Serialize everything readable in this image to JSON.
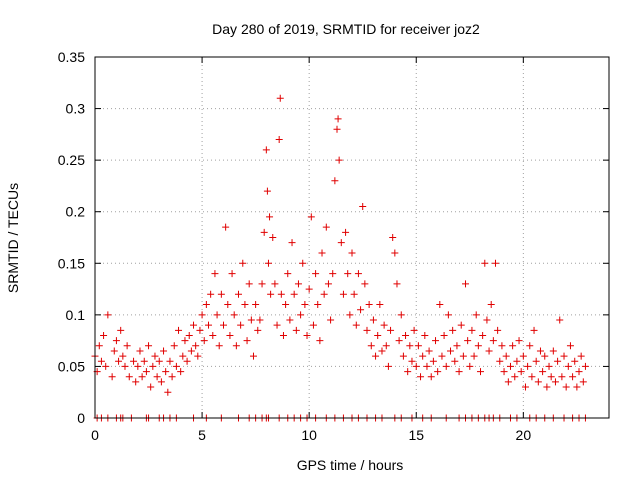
{
  "chart_data": {
    "type": "scatter",
    "title": "Day 280 of 2019, SRMTID for receiver joz2",
    "xlabel": "GPS time / hours",
    "ylabel": "SRMTID / TECUs",
    "xlim": [
      0,
      24
    ],
    "ylim": [
      0,
      0.35
    ],
    "xticks": [
      0,
      5,
      10,
      15,
      20
    ],
    "yticks": [
      0,
      0.05,
      0.1,
      0.15,
      0.2,
      0.25,
      0.3,
      0.35
    ],
    "xtick_labels": [
      "0",
      "5",
      "10",
      "15",
      "20"
    ],
    "ytick_labels": [
      "0",
      "0.05",
      "0.1",
      "0.15",
      "0.2",
      "0.25",
      "0.3",
      "0.35"
    ],
    "grid": true,
    "marker": "+",
    "color": "#e00000",
    "series": [
      {
        "name": "joz2",
        "points": [
          [
            0.0,
            0.06
          ],
          [
            0.1,
            0.045
          ],
          [
            0.2,
            0.07
          ],
          [
            0.3,
            0.055
          ],
          [
            0.4,
            0.08
          ],
          [
            0.5,
            0.05
          ],
          [
            0.6,
            0.1
          ],
          [
            0.8,
            0.04
          ],
          [
            0.9,
            0.065
          ],
          [
            1.0,
            0.075
          ],
          [
            1.1,
            0.055
          ],
          [
            1.2,
            0.085
          ],
          [
            1.3,
            0.06
          ],
          [
            1.4,
            0.05
          ],
          [
            1.5,
            0.07
          ],
          [
            1.6,
            0.04
          ],
          [
            1.8,
            0.055
          ],
          [
            1.9,
            0.035
          ],
          [
            2.0,
            0.05
          ],
          [
            2.1,
            0.065
          ],
          [
            2.2,
            0.04
          ],
          [
            2.3,
            0.055
          ],
          [
            2.4,
            0.045
          ],
          [
            2.5,
            0.07
          ],
          [
            2.6,
            0.03
          ],
          [
            2.7,
            0.05
          ],
          [
            2.8,
            0.06
          ],
          [
            2.9,
            0.04
          ],
          [
            3.0,
            0.055
          ],
          [
            3.1,
            0.035
          ],
          [
            3.2,
            0.065
          ],
          [
            3.3,
            0.045
          ],
          [
            3.4,
            0.025
          ],
          [
            3.5,
            0.055
          ],
          [
            3.6,
            0.04
          ],
          [
            3.7,
            0.07
          ],
          [
            3.8,
            0.05
          ],
          [
            3.9,
            0.085
          ],
          [
            4.0,
            0.045
          ],
          [
            4.1,
            0.06
          ],
          [
            4.2,
            0.075
          ],
          [
            4.3,
            0.055
          ],
          [
            4.4,
            0.08
          ],
          [
            4.5,
            0.065
          ],
          [
            4.6,
            0.09
          ],
          [
            4.7,
            0.07
          ],
          [
            4.8,
            0.06
          ],
          [
            4.9,
            0.085
          ],
          [
            5.0,
            0.1
          ],
          [
            5.1,
            0.075
          ],
          [
            5.2,
            0.11
          ],
          [
            5.3,
            0.09
          ],
          [
            5.4,
            0.12
          ],
          [
            5.5,
            0.08
          ],
          [
            5.6,
            0.14
          ],
          [
            5.7,
            0.1
          ],
          [
            5.8,
            0.07
          ],
          [
            5.9,
            0.12
          ],
          [
            6.0,
            0.09
          ],
          [
            6.1,
            0.185
          ],
          [
            6.2,
            0.11
          ],
          [
            6.3,
            0.08
          ],
          [
            6.4,
            0.14
          ],
          [
            6.5,
            0.1
          ],
          [
            6.6,
            0.07
          ],
          [
            6.7,
            0.12
          ],
          [
            6.8,
            0.09
          ],
          [
            6.9,
            0.15
          ],
          [
            7.0,
            0.11
          ],
          [
            7.1,
            0.075
          ],
          [
            7.2,
            0.13
          ],
          [
            7.3,
            0.095
          ],
          [
            7.4,
            0.06
          ],
          [
            7.5,
            0.11
          ],
          [
            7.6,
            0.085
          ],
          [
            7.7,
            0.095
          ],
          [
            7.8,
            0.13
          ],
          [
            7.9,
            0.18
          ],
          [
            8.0,
            0.26
          ],
          [
            8.05,
            0.22
          ],
          [
            8.1,
            0.15
          ],
          [
            8.15,
            0.195
          ],
          [
            8.2,
            0.12
          ],
          [
            8.3,
            0.175
          ],
          [
            8.4,
            0.13
          ],
          [
            8.5,
            0.09
          ],
          [
            8.6,
            0.27
          ],
          [
            8.65,
            0.31
          ],
          [
            8.7,
            0.12
          ],
          [
            8.8,
            0.08
          ],
          [
            8.9,
            0.11
          ],
          [
            9.0,
            0.14
          ],
          [
            9.1,
            0.095
          ],
          [
            9.2,
            0.17
          ],
          [
            9.3,
            0.12
          ],
          [
            9.4,
            0.085
          ],
          [
            9.5,
            0.13
          ],
          [
            9.6,
            0.1
          ],
          [
            9.7,
            0.15
          ],
          [
            9.8,
            0.11
          ],
          [
            9.9,
            0.08
          ],
          [
            10.0,
            0.125
          ],
          [
            10.1,
            0.195
          ],
          [
            10.2,
            0.09
          ],
          [
            10.3,
            0.14
          ],
          [
            10.4,
            0.11
          ],
          [
            10.5,
            0.075
          ],
          [
            10.6,
            0.16
          ],
          [
            10.7,
            0.12
          ],
          [
            10.8,
            0.185
          ],
          [
            10.9,
            0.13
          ],
          [
            11.0,
            0.095
          ],
          [
            11.1,
            0.14
          ],
          [
            11.2,
            0.23
          ],
          [
            11.3,
            0.28
          ],
          [
            11.35,
            0.29
          ],
          [
            11.4,
            0.25
          ],
          [
            11.5,
            0.17
          ],
          [
            11.6,
            0.12
          ],
          [
            11.7,
            0.18
          ],
          [
            11.8,
            0.14
          ],
          [
            11.9,
            0.1
          ],
          [
            12.0,
            0.16
          ],
          [
            12.1,
            0.12
          ],
          [
            12.2,
            0.09
          ],
          [
            12.3,
            0.14
          ],
          [
            12.4,
            0.105
          ],
          [
            12.5,
            0.205
          ],
          [
            12.6,
            0.13
          ],
          [
            12.7,
            0.085
          ],
          [
            12.8,
            0.11
          ],
          [
            12.9,
            0.07
          ],
          [
            13.0,
            0.095
          ],
          [
            13.1,
            0.06
          ],
          [
            13.2,
            0.08
          ],
          [
            13.3,
            0.11
          ],
          [
            13.4,
            0.065
          ],
          [
            13.5,
            0.09
          ],
          [
            13.6,
            0.07
          ],
          [
            13.7,
            0.05
          ],
          [
            13.8,
            0.085
          ],
          [
            13.9,
            0.175
          ],
          [
            14.0,
            0.16
          ],
          [
            14.1,
            0.13
          ],
          [
            14.2,
            0.075
          ],
          [
            14.3,
            0.1
          ],
          [
            14.4,
            0.06
          ],
          [
            14.5,
            0.08
          ],
          [
            14.6,
            0.045
          ],
          [
            14.7,
            0.07
          ],
          [
            14.8,
            0.055
          ],
          [
            14.9,
            0.085
          ],
          [
            15.0,
            0.05
          ],
          [
            15.1,
            0.07
          ],
          [
            15.2,
            0.04
          ],
          [
            15.3,
            0.06
          ],
          [
            15.4,
            0.08
          ],
          [
            15.5,
            0.05
          ],
          [
            15.6,
            0.065
          ],
          [
            15.7,
            0.04
          ],
          [
            15.8,
            0.055
          ],
          [
            15.9,
            0.075
          ],
          [
            16.0,
            0.045
          ],
          [
            16.1,
            0.11
          ],
          [
            16.2,
            0.06
          ],
          [
            16.3,
            0.08
          ],
          [
            16.4,
            0.05
          ],
          [
            16.5,
            0.1
          ],
          [
            16.6,
            0.065
          ],
          [
            16.7,
            0.085
          ],
          [
            16.8,
            0.055
          ],
          [
            16.9,
            0.07
          ],
          [
            17.0,
            0.045
          ],
          [
            17.1,
            0.09
          ],
          [
            17.2,
            0.06
          ],
          [
            17.3,
            0.13
          ],
          [
            17.4,
            0.075
          ],
          [
            17.5,
            0.05
          ],
          [
            17.6,
            0.085
          ],
          [
            17.7,
            0.06
          ],
          [
            17.8,
            0.1
          ],
          [
            17.9,
            0.07
          ],
          [
            18.0,
            0.045
          ],
          [
            18.1,
            0.08
          ],
          [
            18.2,
            0.15
          ],
          [
            18.3,
            0.095
          ],
          [
            18.4,
            0.065
          ],
          [
            18.5,
            0.11
          ],
          [
            18.6,
            0.075
          ],
          [
            18.7,
            0.15
          ],
          [
            18.8,
            0.085
          ],
          [
            18.9,
            0.055
          ],
          [
            19.0,
            0.07
          ],
          [
            19.1,
            0.045
          ],
          [
            19.2,
            0.06
          ],
          [
            19.3,
            0.035
          ],
          [
            19.4,
            0.05
          ],
          [
            19.5,
            0.07
          ],
          [
            19.6,
            0.04
          ],
          [
            19.7,
            0.055
          ],
          [
            19.8,
            0.075
          ],
          [
            19.9,
            0.045
          ],
          [
            20.0,
            0.06
          ],
          [
            20.1,
            0.03
          ],
          [
            20.2,
            0.05
          ],
          [
            20.3,
            0.07
          ],
          [
            20.4,
            0.04
          ],
          [
            20.5,
            0.085
          ],
          [
            20.6,
            0.055
          ],
          [
            20.7,
            0.035
          ],
          [
            20.8,
            0.065
          ],
          [
            20.9,
            0.045
          ],
          [
            21.0,
            0.06
          ],
          [
            21.1,
            0.03
          ],
          [
            21.2,
            0.05
          ],
          [
            21.3,
            0.04
          ],
          [
            21.4,
            0.065
          ],
          [
            21.5,
            0.035
          ],
          [
            21.6,
            0.055
          ],
          [
            21.7,
            0.095
          ],
          [
            21.8,
            0.04
          ],
          [
            21.9,
            0.06
          ],
          [
            22.0,
            0.03
          ],
          [
            22.1,
            0.05
          ],
          [
            22.2,
            0.07
          ],
          [
            22.3,
            0.04
          ],
          [
            22.4,
            0.055
          ],
          [
            22.5,
            0.03
          ],
          [
            22.6,
            0.045
          ],
          [
            22.7,
            0.06
          ],
          [
            22.8,
            0.035
          ],
          [
            22.9,
            0.05
          ]
        ],
        "zero_points": [
          0.1,
          0.3,
          0.6,
          1.0,
          1.2,
          1.3,
          1.7,
          2.4,
          2.5,
          3.0,
          3.2,
          3.5,
          3.8,
          4.6,
          5.2,
          5.9,
          6.7,
          7.2,
          7.5,
          7.8,
          8.0,
          8.1,
          8.6,
          9.0,
          9.3,
          9.6,
          9.9,
          10.3,
          10.8,
          11.2,
          11.6,
          12.0,
          12.3,
          12.7,
          13.1,
          13.4,
          14.0,
          14.3,
          14.8,
          15.3,
          15.7,
          16.4,
          17.0,
          17.3,
          17.6,
          17.9,
          18.2,
          18.4,
          18.6,
          18.9,
          19.4,
          19.7,
          20.3,
          20.6,
          21.0,
          21.4,
          21.9,
          22.3,
          22.6,
          22.9
        ]
      }
    ]
  }
}
